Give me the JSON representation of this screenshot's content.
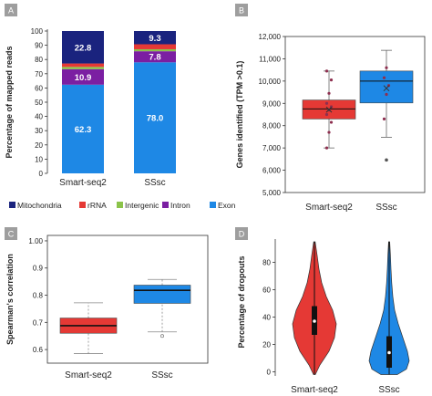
{
  "chart_data": [
    {
      "panel": "A",
      "type": "bar",
      "stacked": true,
      "categories": [
        "Smart-seq2",
        "SSsc"
      ],
      "ylabel": "Percentage of mapped reads",
      "ylim": [
        0,
        100
      ],
      "yticks": [
        0,
        10,
        20,
        30,
        40,
        50,
        60,
        70,
        80,
        90,
        100
      ],
      "legend_position": "bottom",
      "series": [
        {
          "name": "Exon",
          "color": "#1e88e5",
          "values": [
            62.3,
            78.0
          ],
          "labels": [
            "62.3",
            "78.0"
          ]
        },
        {
          "name": "Intron",
          "color": "#7b1fa2",
          "values": [
            10.9,
            7.8
          ],
          "labels": [
            "10.9",
            "7.8"
          ]
        },
        {
          "name": "Intergenic",
          "color": "#8bc34a",
          "values": [
            1.6,
            1.4
          ],
          "labels": [
            "",
            ""
          ]
        },
        {
          "name": "rRNA",
          "color": "#e53935",
          "values": [
            2.4,
            3.5
          ],
          "labels": [
            "",
            ""
          ]
        },
        {
          "name": "Mitochondria",
          "color": "#1a237e",
          "values": [
            22.8,
            9.3
          ],
          "labels": [
            "22.8",
            "9.3"
          ]
        }
      ],
      "legend_order": [
        "Mitochondria",
        "rRNA",
        "Intergenic",
        "Intron",
        "Exon"
      ]
    },
    {
      "panel": "B",
      "type": "box",
      "categories": [
        "Smart-seq2",
        "SSsc"
      ],
      "ylabel": "Genes identified (TPM >0.1)",
      "ylim": [
        5000,
        12000
      ],
      "yticks": [
        "5,000",
        "6,000",
        "7,000",
        "8,000",
        "9,000",
        "10,000",
        "11,000",
        "12,000"
      ],
      "ytick_values": [
        5000,
        6000,
        7000,
        8000,
        9000,
        10000,
        11000,
        12000
      ],
      "boxes": [
        {
          "name": "Smart-seq2",
          "color": "#e53935",
          "whisker_low": 7000,
          "q1": 8300,
          "median": 8750,
          "q3": 9150,
          "whisker_high": 10450,
          "mean": 8720,
          "points": [
            7000,
            7700,
            8150,
            8500,
            8700,
            8850,
            9000,
            9450,
            10050,
            10450
          ]
        },
        {
          "name": "SSsc",
          "color": "#1e88e5",
          "whisker_low": 7480,
          "q1": 9020,
          "median": 10000,
          "q3": 10450,
          "whisker_high": 11380,
          "mean": 9680,
          "points": [
            8300,
            9400,
            9800,
            10150,
            10600
          ],
          "outliers": [
            6460
          ]
        }
      ]
    },
    {
      "panel": "C",
      "type": "box",
      "categories": [
        "Smart-seq2",
        "SSsc"
      ],
      "ylabel": "Spearman's correlation",
      "ylim": [
        0.55,
        1.02
      ],
      "yticks": [
        "0.6",
        "0.7",
        "0.8",
        "0.9",
        "1.00"
      ],
      "ytick_values": [
        0.6,
        0.7,
        0.8,
        0.9,
        1.0
      ],
      "boxes": [
        {
          "name": "Smart-seq2",
          "color": "#e53935",
          "whisker_low": 0.585,
          "q1": 0.66,
          "median": 0.688,
          "q3": 0.716,
          "whisker_high": 0.772
        },
        {
          "name": "SSsc",
          "color": "#1e88e5",
          "whisker_low": 0.665,
          "q1": 0.77,
          "median": 0.818,
          "q3": 0.837,
          "whisker_high": 0.858,
          "outliers": [
            0.65
          ]
        }
      ]
    },
    {
      "panel": "D",
      "type": "violin",
      "categories": [
        "Smart-seq2",
        "SSsc"
      ],
      "ylabel": "Percentage of dropouts",
      "ylim": [
        -3,
        97
      ],
      "yticks": [
        "0",
        "20",
        "40",
        "60",
        "80"
      ],
      "ytick_values": [
        0,
        20,
        40,
        60,
        80
      ],
      "violins": [
        {
          "name": "Smart-seq2",
          "color": "#e53935",
          "min": -2,
          "max": 95,
          "q1": 27,
          "median": 37,
          "q3": 48
        },
        {
          "name": "SSsc",
          "color": "#1e88e5",
          "min": -2,
          "max": 95,
          "q1": 3,
          "median": 14,
          "q3": 26
        }
      ]
    }
  ],
  "panel_labels": [
    "A",
    "B",
    "C",
    "D"
  ],
  "colors": {
    "badge": "#9e9e9e",
    "whisker": "#666666",
    "axis": "#333333",
    "median": "#111111"
  }
}
